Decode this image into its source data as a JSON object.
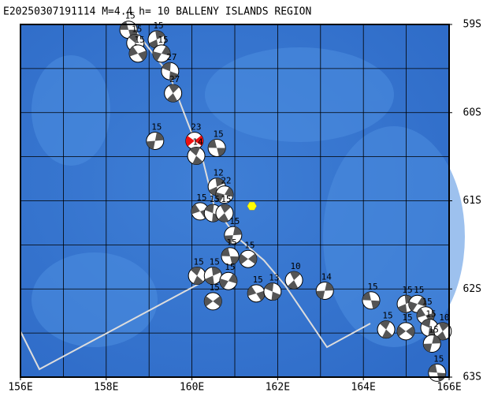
{
  "map": {
    "title": "E20250307191114 M=4.4 h= 10 BALLENY ISLANDS REGION",
    "xlim": [
      156,
      166
    ],
    "ylim": [
      59,
      63
    ],
    "xticks": [
      {
        "value": 156,
        "label": "156E"
      },
      {
        "value": 158,
        "label": "158E"
      },
      {
        "value": 160,
        "label": "160E"
      },
      {
        "value": 162,
        "label": "162E"
      },
      {
        "value": 164,
        "label": "164E"
      },
      {
        "value": 166,
        "label": "166E"
      }
    ],
    "yticks": [
      {
        "value": 59,
        "label": "59S"
      },
      {
        "value": 60,
        "label": "60S"
      },
      {
        "value": 61,
        "label": "61S"
      },
      {
        "value": 62,
        "label": "62S"
      },
      {
        "value": 63,
        "label": "63S"
      }
    ],
    "grid_lon": [
      156,
      157,
      158,
      159,
      160,
      161,
      162,
      163,
      164,
      165,
      166
    ],
    "grid_lat": [
      59,
      59.5,
      60,
      60.5,
      61,
      61.5,
      62,
      62.5,
      63
    ],
    "epicenter": {
      "lon": 161.4,
      "lat": 61.06,
      "color": "#ffff00"
    },
    "events": [
      {
        "lon": 158.52,
        "lat": 59.06,
        "depth": 15
      },
      {
        "lon": 158.68,
        "lat": 59.21,
        "depth": 15
      },
      {
        "lon": 159.18,
        "lat": 59.17,
        "depth": 15
      },
      {
        "lon": 159.29,
        "lat": 59.33,
        "depth": 15
      },
      {
        "lon": 158.74,
        "lat": 59.33,
        "depth": 15
      },
      {
        "lon": 159.49,
        "lat": 59.53,
        "depth": 27
      },
      {
        "lon": 159.56,
        "lat": 59.78,
        "depth": 27
      },
      {
        "lon": 159.14,
        "lat": 60.32,
        "depth": 15
      },
      {
        "lon": 160.06,
        "lat": 60.32,
        "depth": 23,
        "color": "#ee1111"
      },
      {
        "lon": 160.58,
        "lat": 60.4,
        "depth": 15
      },
      {
        "lon": 160.1,
        "lat": 60.49,
        "depth": 14
      },
      {
        "lon": 160.58,
        "lat": 60.84,
        "depth": 12
      },
      {
        "lon": 160.76,
        "lat": 60.93,
        "depth": 22
      },
      {
        "lon": 160.19,
        "lat": 61.12,
        "depth": 15
      },
      {
        "lon": 160.49,
        "lat": 61.14,
        "depth": 15
      },
      {
        "lon": 160.76,
        "lat": 61.14,
        "depth": 15
      },
      {
        "lon": 160.96,
        "lat": 61.39,
        "depth": 15
      },
      {
        "lon": 161.31,
        "lat": 61.66,
        "depth": 15
      },
      {
        "lon": 160.89,
        "lat": 61.63,
        "depth": 15
      },
      {
        "lon": 160.12,
        "lat": 61.85,
        "depth": 15
      },
      {
        "lon": 160.49,
        "lat": 61.85,
        "depth": 15
      },
      {
        "lon": 160.85,
        "lat": 61.91,
        "depth": 15
      },
      {
        "lon": 161.5,
        "lat": 62.05,
        "depth": 15
      },
      {
        "lon": 161.88,
        "lat": 62.03,
        "depth": 13
      },
      {
        "lon": 162.38,
        "lat": 61.9,
        "depth": 10
      },
      {
        "lon": 163.1,
        "lat": 62.02,
        "depth": 14
      },
      {
        "lon": 160.49,
        "lat": 62.14,
        "depth": 15
      },
      {
        "lon": 164.18,
        "lat": 62.13,
        "depth": 15
      },
      {
        "lon": 164.53,
        "lat": 62.46,
        "depth": 15
      },
      {
        "lon": 164.99,
        "lat": 62.17,
        "depth": 15
      },
      {
        "lon": 165.26,
        "lat": 62.17,
        "depth": 15
      },
      {
        "lon": 165.45,
        "lat": 62.3,
        "depth": 15
      },
      {
        "lon": 165.54,
        "lat": 62.44,
        "depth": 15
      },
      {
        "lon": 165.85,
        "lat": 62.48,
        "depth": 10
      },
      {
        "lon": 165.6,
        "lat": 62.62,
        "depth": 15
      },
      {
        "lon": 164.99,
        "lat": 62.48,
        "depth": 15
      },
      {
        "lon": 165.72,
        "lat": 62.95,
        "depth": 15
      }
    ]
  }
}
